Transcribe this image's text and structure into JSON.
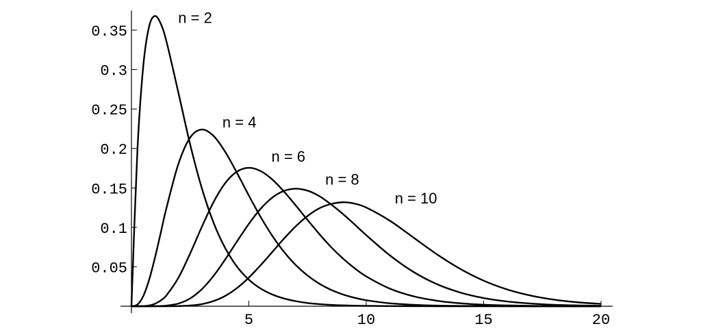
{
  "chart_data": {
    "type": "line",
    "x": [
      0,
      0.25,
      0.5,
      0.75,
      1,
      1.25,
      1.5,
      2,
      2.5,
      3,
      3.5,
      4,
      4.5,
      5,
      5.5,
      6,
      6.5,
      7,
      7.5,
      8,
      8.5,
      9,
      9.5,
      10,
      11,
      12,
      13,
      14,
      15,
      16,
      17,
      18,
      19,
      20
    ],
    "series": [
      {
        "name": "n = 2",
        "color": "#000000",
        "values": [
          0,
          0.1947,
          0.3033,
          0.3543,
          0.3679,
          0.3581,
          0.3347,
          0.2707,
          0.2052,
          0.1494,
          0.1057,
          0.0733,
          0.05,
          0.0337,
          0.0225,
          0.0149,
          0.0098,
          0.0064,
          0.0041,
          0.0027,
          0.0017,
          0.0011,
          0.0007,
          0.0005,
          0.0002,
          0.0001,
          0,
          0,
          0,
          0,
          0,
          0,
          0,
          0
        ]
      },
      {
        "name": "n = 4",
        "color": "#000000",
        "values": [
          0,
          0.002,
          0.0126,
          0.0332,
          0.0613,
          0.0933,
          0.1255,
          0.1804,
          0.2138,
          0.224,
          0.2158,
          0.1954,
          0.1687,
          0.1404,
          0.1133,
          0.0892,
          0.0688,
          0.0521,
          0.0389,
          0.0286,
          0.0208,
          0.015,
          0.0107,
          0.0076,
          0.0037,
          0.0018,
          0.0008,
          0.0004,
          0.0002,
          0.0001,
          0,
          0,
          0,
          0
        ]
      },
      {
        "name": "n = 6",
        "color": "#000000",
        "values": [
          0,
          0,
          0.0002,
          0.0009,
          0.0031,
          0.0073,
          0.0141,
          0.0361,
          0.0668,
          0.1008,
          0.1322,
          0.1563,
          0.1708,
          0.1755,
          0.1714,
          0.1606,
          0.1453,
          0.1277,
          0.1094,
          0.0916,
          0.0751,
          0.0607,
          0.0483,
          0.0378,
          0.0224,
          0.0127,
          0.007,
          0.0037,
          0.0019,
          0.001,
          0.0005,
          0.0002,
          0.0001,
          0.0001
        ]
      },
      {
        "name": "n = 8",
        "color": "#000000",
        "values": [
          0,
          0,
          0,
          0,
          0.0001,
          0.0003,
          0.0008,
          0.0034,
          0.0099,
          0.0216,
          0.0386,
          0.0596,
          0.0824,
          0.1044,
          0.1235,
          0.1377,
          0.1462,
          0.149,
          0.1465,
          0.1396,
          0.1291,
          0.1171,
          0.1038,
          0.0901,
          0.0646,
          0.0437,
          0.0281,
          0.0174,
          0.0104,
          0.006,
          0.0034,
          0.0018,
          0.001,
          0.0005
        ]
      },
      {
        "name": "n = 10",
        "color": "#000000",
        "values": [
          0,
          0,
          0,
          0,
          0,
          0,
          0,
          0.0002,
          0.0009,
          0.0027,
          0.0066,
          0.0132,
          0.0232,
          0.0363,
          0.0519,
          0.0688,
          0.0858,
          0.1014,
          0.1144,
          0.1241,
          0.1296,
          0.1318,
          0.1301,
          0.1251,
          0.1085,
          0.0873,
          0.066,
          0.0474,
          0.0324,
          0.0213,
          0.0135,
          0.0083,
          0.005,
          0.0029
        ]
      }
    ],
    "xlim": [
      0,
      20.5
    ],
    "ylim": [
      0,
      0.375
    ],
    "xticks": [
      5,
      10,
      15,
      20
    ],
    "yticks": [
      0.05,
      0.1,
      0.15,
      0.2,
      0.25,
      0.3,
      0.35
    ]
  }
}
